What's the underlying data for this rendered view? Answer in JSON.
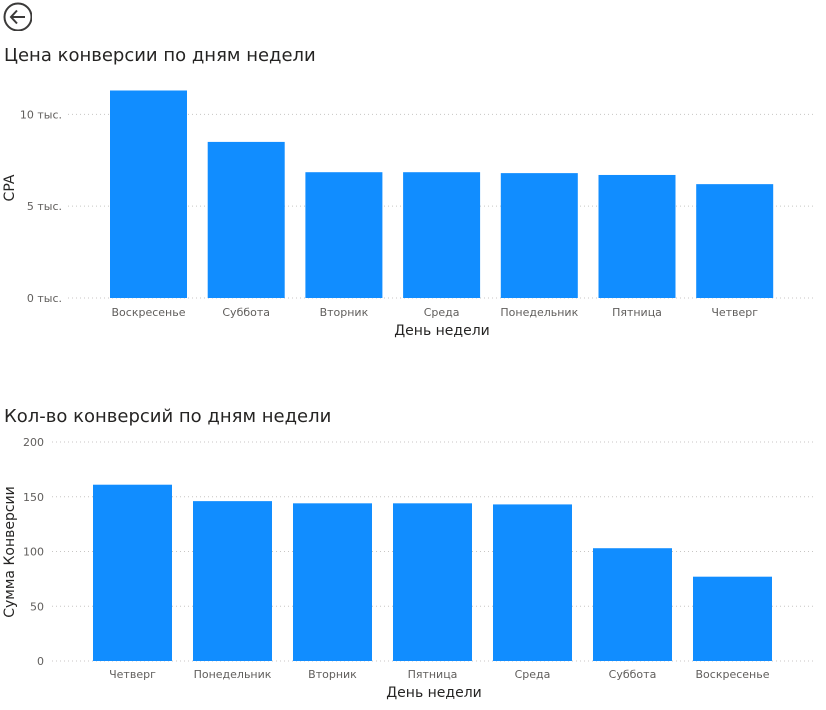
{
  "nav": {
    "back_icon": "arrow-left-circle-icon"
  },
  "colors": {
    "bar": "#118DFF",
    "grid": "#C8C6C4",
    "text": "#605E5C"
  },
  "chart_data": [
    {
      "type": "bar",
      "title": "Цена конверсии по дням недели",
      "xlabel": "День недели",
      "ylabel": "CPA",
      "categories": [
        "Воскресенье",
        "Суббота",
        "Вторник",
        "Среда",
        "Понедельник",
        "Пятница",
        "Четверг"
      ],
      "values": [
        11300,
        8500,
        6850,
        6850,
        6800,
        6700,
        6200
      ],
      "ylim": [
        0,
        11000
      ],
      "yticks": [
        0,
        5000,
        10000
      ],
      "ytick_labels": [
        "0 тыс.",
        "5 тыс.",
        "10 тыс."
      ],
      "grid": true
    },
    {
      "type": "bar",
      "title": "Кол-во конверсий по дням недели",
      "xlabel": "День недели",
      "ylabel": "Сумма Конверсии",
      "categories": [
        "Четверг",
        "Понедельник",
        "Вторник",
        "Пятница",
        "Среда",
        "Суббота",
        "Воскресенье"
      ],
      "values": [
        161,
        146,
        144,
        144,
        143,
        103,
        77
      ],
      "ylim": [
        0,
        200
      ],
      "yticks": [
        0,
        50,
        100,
        150,
        200
      ],
      "ytick_labels": [
        "0",
        "50",
        "100",
        "150",
        "200"
      ],
      "grid": true
    }
  ]
}
